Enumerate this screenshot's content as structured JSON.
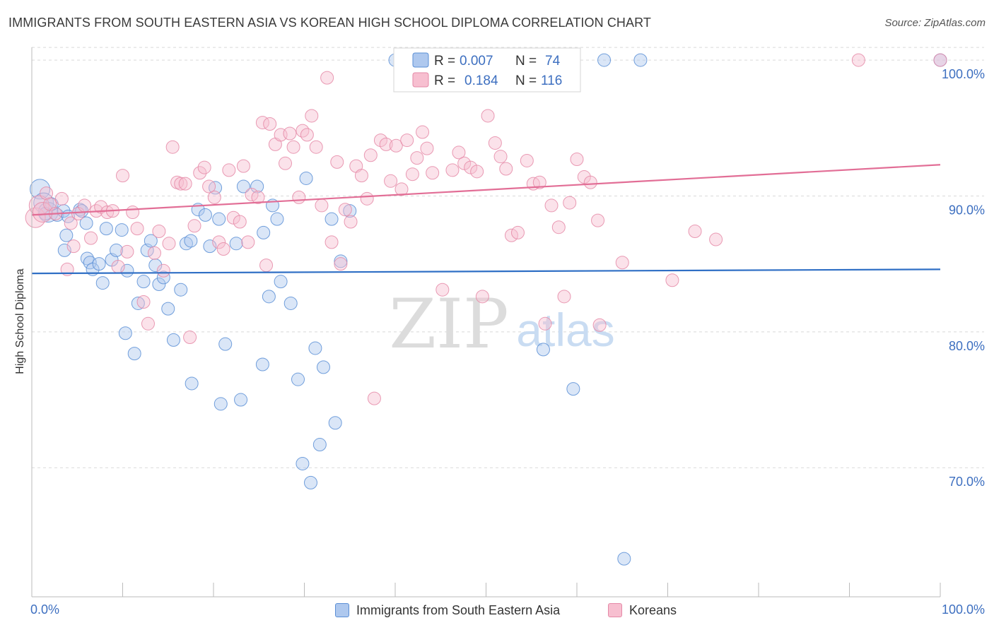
{
  "title": "IMMIGRANTS FROM SOUTH EASTERN ASIA VS KOREAN HIGH SCHOOL DIPLOMA CORRELATION CHART",
  "source": "Source: ZipAtlas.com",
  "watermark": {
    "zip": "ZIP",
    "atlas": "atlas"
  },
  "colors": {
    "blue_fill": "#aec8ee",
    "blue_stroke": "#5b8fd6",
    "blue_line": "#2f6fc5",
    "pink_fill": "#f7bfd0",
    "pink_stroke": "#e589a7",
    "pink_line": "#e26e96",
    "tick_label": "#3d6fc0",
    "grid": "#d9d9d9"
  },
  "legend_top": {
    "rows": [
      {
        "r_label": "R =",
        "r_value": "0.007",
        "n_label": "N =",
        "n_value": "74"
      },
      {
        "r_label": "R =",
        "r_value": "0.184",
        "n_label": "N =",
        "n_value": "116"
      }
    ]
  },
  "legend_bottom": {
    "items": [
      {
        "label": "Immigrants from South Eastern Asia"
      },
      {
        "label": "Koreans"
      }
    ]
  },
  "chart_data": {
    "type": "scatter",
    "xlabel": "",
    "ylabel": "High School Diploma",
    "xlim": [
      0,
      100
    ],
    "ylim": [
      60.5,
      101.2
    ],
    "x_tick_labels": [
      "0.0%",
      "100.0%"
    ],
    "y_ticks": [
      {
        "value": 70,
        "label": "70.0%"
      },
      {
        "value": 80,
        "label": "80.0%"
      },
      {
        "value": 90,
        "label": "90.0%"
      },
      {
        "value": 100,
        "label": "100.0%"
      }
    ],
    "grid": true,
    "series": [
      {
        "name": "Immigrants from South Eastern Asia",
        "color": "#5b8fd6",
        "trend": {
          "x": [
            0,
            100
          ],
          "y": [
            84.3,
            84.6
          ]
        },
        "points": [
          [
            0.9,
            90.5
          ],
          [
            1.3,
            89.5
          ],
          [
            1.8,
            88.8
          ],
          [
            2.2,
            89.4
          ],
          [
            2.8,
            88.6
          ],
          [
            1.5,
            88.7
          ],
          [
            3.5,
            88.9
          ],
          [
            3.8,
            87.1
          ],
          [
            3.6,
            86.0
          ],
          [
            5.3,
            89.0
          ],
          [
            5.5,
            88.9
          ],
          [
            6.1,
            85.4
          ],
          [
            6.4,
            85.1
          ],
          [
            6.7,
            84.6
          ],
          [
            7.4,
            85.0
          ],
          [
            7.8,
            83.6
          ],
          [
            8.2,
            87.6
          ],
          [
            8.8,
            85.3
          ],
          [
            9.3,
            86.0
          ],
          [
            9.9,
            87.5
          ],
          [
            10.5,
            84.5
          ],
          [
            10.3,
            79.9
          ],
          [
            11.3,
            78.4
          ],
          [
            11.7,
            82.1
          ],
          [
            12.3,
            83.7
          ],
          [
            12.7,
            86.0
          ],
          [
            13.1,
            86.7
          ],
          [
            13.6,
            84.9
          ],
          [
            14.0,
            83.5
          ],
          [
            14.5,
            84.0
          ],
          [
            15.0,
            81.7
          ],
          [
            15.6,
            79.4
          ],
          [
            16.4,
            83.1
          ],
          [
            17.0,
            86.5
          ],
          [
            17.5,
            86.7
          ],
          [
            17.6,
            76.2
          ],
          [
            18.3,
            89.0
          ],
          [
            19.1,
            88.6
          ],
          [
            19.6,
            86.3
          ],
          [
            20.2,
            90.6
          ],
          [
            20.6,
            88.3
          ],
          [
            20.8,
            74.7
          ],
          [
            21.3,
            79.1
          ],
          [
            22.5,
            86.5
          ],
          [
            23.0,
            75.0
          ],
          [
            23.3,
            90.7
          ],
          [
            24.8,
            90.7
          ],
          [
            25.4,
            77.6
          ],
          [
            25.5,
            87.3
          ],
          [
            26.1,
            82.6
          ],
          [
            26.5,
            89.3
          ],
          [
            27.0,
            88.3
          ],
          [
            27.4,
            83.7
          ],
          [
            28.5,
            82.1
          ],
          [
            29.3,
            76.5
          ],
          [
            29.8,
            70.3
          ],
          [
            30.2,
            91.3
          ],
          [
            30.7,
            68.9
          ],
          [
            31.2,
            78.8
          ],
          [
            31.7,
            71.7
          ],
          [
            32.1,
            77.4
          ],
          [
            33.0,
            88.3
          ],
          [
            33.4,
            73.3
          ],
          [
            34.0,
            85.2
          ],
          [
            35.0,
            88.9
          ],
          [
            40.0,
            100.0
          ],
          [
            56.3,
            78.7
          ],
          [
            59.6,
            75.8
          ],
          [
            63.0,
            100.0
          ],
          [
            65.2,
            63.3
          ],
          [
            67.0,
            100.0
          ],
          [
            100.0,
            100.0
          ],
          [
            6.0,
            88.0
          ],
          [
            4.0,
            88.5
          ]
        ]
      },
      {
        "name": "Koreans",
        "color": "#e589a7",
        "trend": {
          "x": [
            0,
            100
          ],
          "y": [
            88.6,
            92.3
          ]
        },
        "points": [
          [
            0.4,
            88.4
          ],
          [
            0.8,
            89.3
          ],
          [
            1.2,
            88.8
          ],
          [
            1.6,
            90.2
          ],
          [
            2.0,
            89.4
          ],
          [
            2.6,
            88.7
          ],
          [
            3.3,
            89.8
          ],
          [
            3.9,
            84.6
          ],
          [
            4.3,
            88.0
          ],
          [
            4.6,
            86.3
          ],
          [
            5.1,
            88.7
          ],
          [
            5.8,
            89.3
          ],
          [
            6.5,
            86.9
          ],
          [
            7.1,
            88.9
          ],
          [
            7.6,
            89.2
          ],
          [
            8.3,
            88.8
          ],
          [
            8.9,
            88.9
          ],
          [
            9.5,
            84.8
          ],
          [
            10.0,
            91.5
          ],
          [
            10.5,
            85.9
          ],
          [
            11.1,
            88.8
          ],
          [
            11.6,
            87.6
          ],
          [
            12.3,
            82.2
          ],
          [
            12.8,
            80.6
          ],
          [
            13.5,
            85.8
          ],
          [
            14.0,
            87.4
          ],
          [
            14.5,
            84.5
          ],
          [
            15.1,
            86.5
          ],
          [
            15.5,
            93.6
          ],
          [
            16.0,
            91.0
          ],
          [
            16.4,
            90.9
          ],
          [
            16.9,
            90.9
          ],
          [
            17.4,
            79.6
          ],
          [
            17.9,
            87.8
          ],
          [
            18.5,
            91.7
          ],
          [
            19.0,
            92.1
          ],
          [
            19.5,
            90.7
          ],
          [
            20.1,
            89.9
          ],
          [
            20.6,
            86.6
          ],
          [
            21.1,
            86.1
          ],
          [
            21.7,
            91.9
          ],
          [
            22.2,
            88.4
          ],
          [
            22.9,
            88.1
          ],
          [
            23.3,
            92.2
          ],
          [
            23.8,
            86.6
          ],
          [
            24.2,
            90.1
          ],
          [
            24.9,
            89.9
          ],
          [
            25.4,
            95.4
          ],
          [
            25.8,
            84.9
          ],
          [
            26.2,
            95.3
          ],
          [
            26.8,
            93.8
          ],
          [
            27.4,
            94.5
          ],
          [
            27.9,
            92.4
          ],
          [
            28.4,
            94.6
          ],
          [
            28.8,
            93.6
          ],
          [
            29.4,
            89.9
          ],
          [
            29.8,
            94.8
          ],
          [
            30.3,
            94.5
          ],
          [
            30.8,
            95.9
          ],
          [
            31.3,
            93.6
          ],
          [
            31.9,
            89.3
          ],
          [
            32.5,
            98.7
          ],
          [
            33.0,
            86.6
          ],
          [
            33.6,
            92.5
          ],
          [
            34.0,
            85.0
          ],
          [
            34.5,
            89.0
          ],
          [
            35.1,
            88.1
          ],
          [
            35.7,
            92.2
          ],
          [
            36.3,
            91.5
          ],
          [
            36.9,
            89.8
          ],
          [
            37.3,
            93.0
          ],
          [
            37.7,
            75.1
          ],
          [
            38.4,
            94.1
          ],
          [
            39.0,
            93.8
          ],
          [
            39.5,
            91.1
          ],
          [
            40.1,
            93.7
          ],
          [
            40.7,
            90.5
          ],
          [
            41.3,
            94.1
          ],
          [
            41.9,
            91.6
          ],
          [
            42.4,
            92.8
          ],
          [
            43.0,
            94.7
          ],
          [
            43.5,
            93.5
          ],
          [
            44.1,
            91.7
          ],
          [
            45.2,
            83.1
          ],
          [
            46.3,
            91.9
          ],
          [
            47.0,
            93.2
          ],
          [
            47.6,
            92.4
          ],
          [
            48.3,
            92.1
          ],
          [
            49.0,
            91.8
          ],
          [
            49.6,
            82.6
          ],
          [
            50.2,
            95.9
          ],
          [
            51.0,
            93.9
          ],
          [
            51.6,
            92.9
          ],
          [
            52.2,
            92.0
          ],
          [
            52.8,
            87.1
          ],
          [
            53.5,
            87.3
          ],
          [
            54.5,
            92.6
          ],
          [
            55.2,
            90.9
          ],
          [
            55.9,
            91.0
          ],
          [
            56.5,
            80.6
          ],
          [
            57.2,
            89.3
          ],
          [
            58.0,
            87.7
          ],
          [
            58.6,
            82.6
          ],
          [
            59.2,
            89.5
          ],
          [
            60.0,
            92.7
          ],
          [
            60.8,
            91.4
          ],
          [
            61.5,
            91.0
          ],
          [
            62.3,
            88.2
          ],
          [
            62.5,
            80.5
          ],
          [
            65.0,
            85.1
          ],
          [
            70.5,
            83.8
          ],
          [
            73.0,
            87.4
          ],
          [
            75.3,
            86.8
          ],
          [
            91.0,
            100.0
          ],
          [
            100.0,
            100.0
          ],
          [
            41.0,
            100.0
          ]
        ]
      }
    ]
  }
}
